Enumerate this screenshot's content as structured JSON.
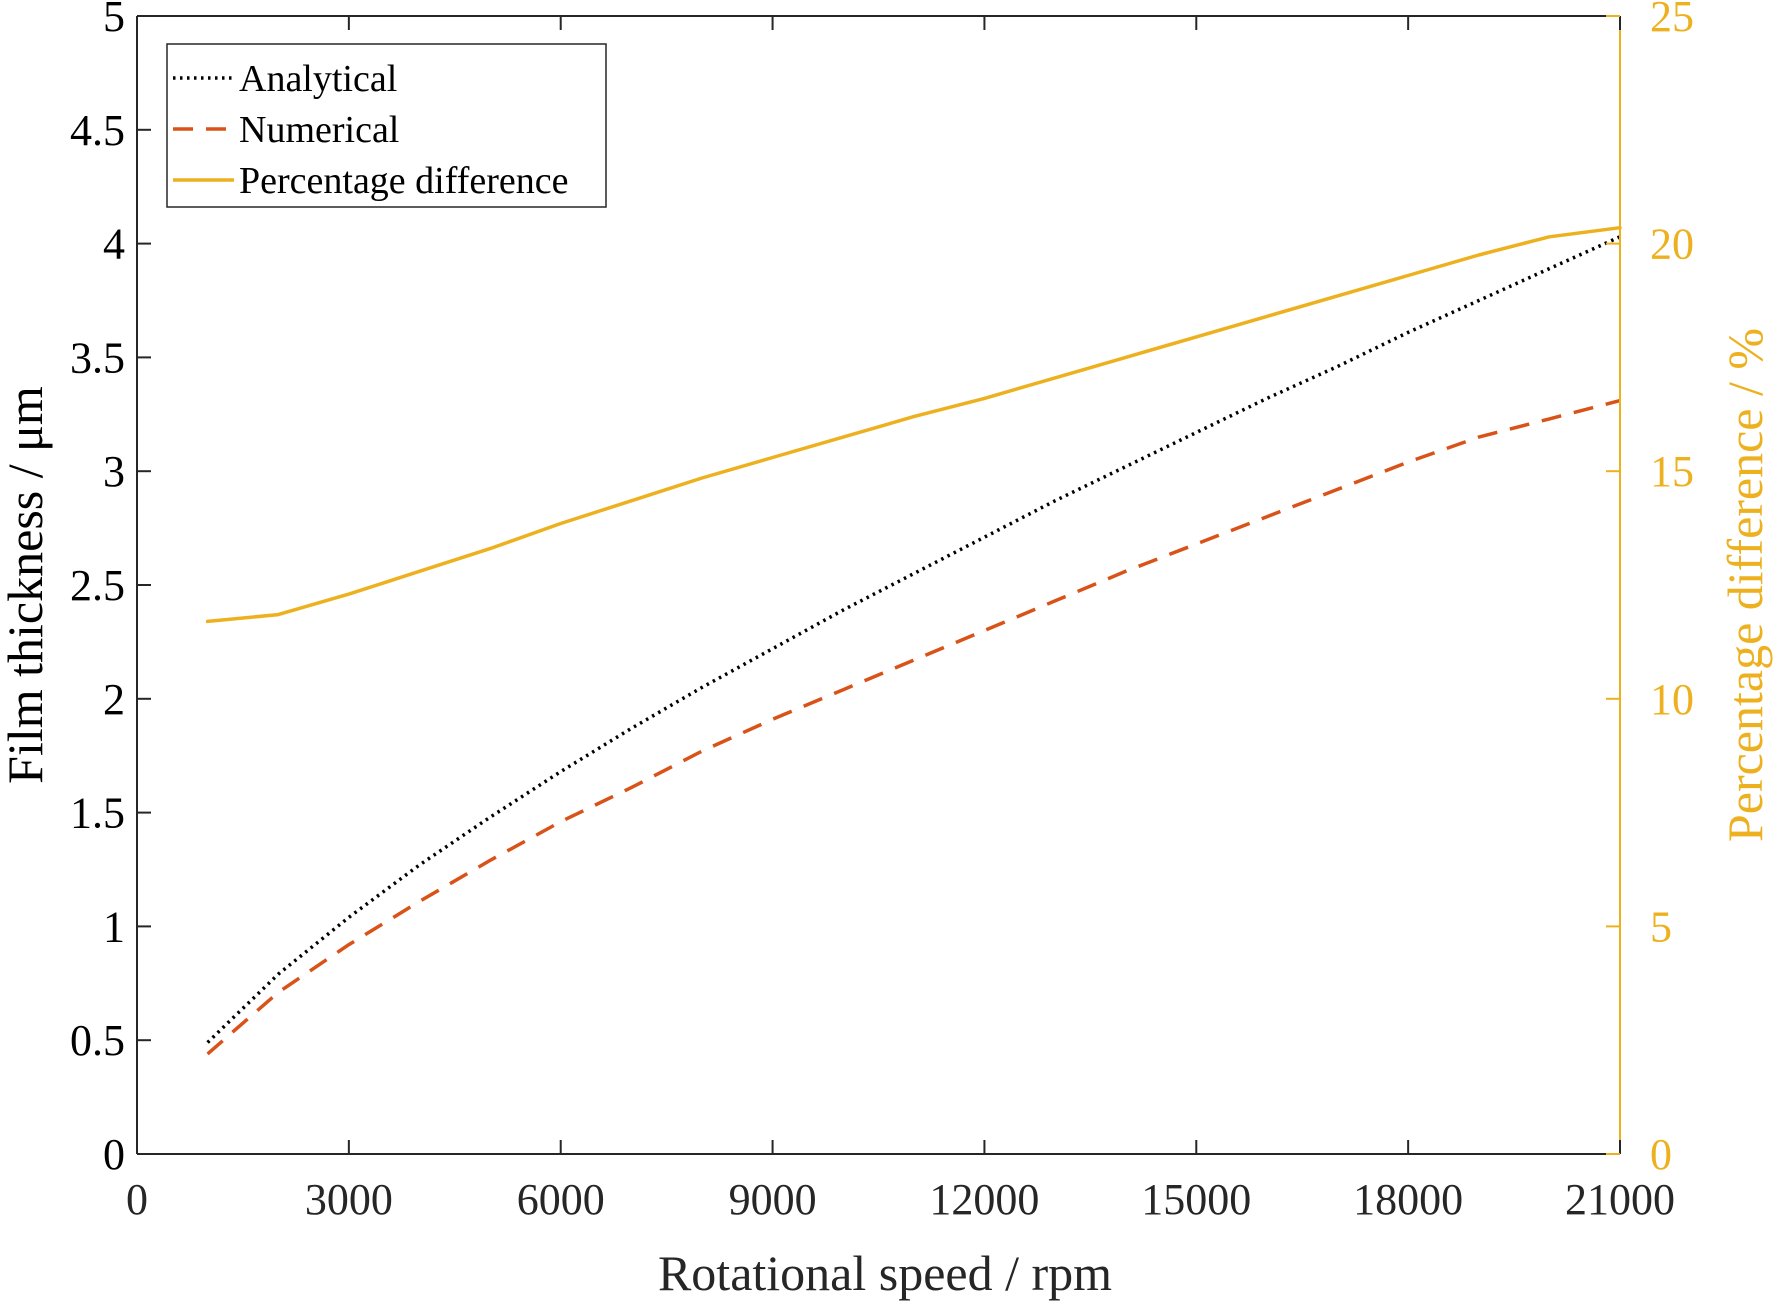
{
  "chart_data": {
    "type": "line",
    "xlabel": "Rotational speed / rpm",
    "ylabel_left": "Film thickness / μm",
    "ylabel_right": "Percentage difference / %",
    "xlim": [
      0,
      21000
    ],
    "ylim_left": [
      0,
      5
    ],
    "ylim_right": [
      0,
      25
    ],
    "x_ticks": [
      0,
      3000,
      6000,
      9000,
      12000,
      15000,
      18000,
      21000
    ],
    "y_left_ticks": [
      0,
      0.5,
      1,
      1.5,
      2,
      2.5,
      3,
      3.5,
      4,
      4.5,
      5
    ],
    "y_right_ticks": [
      0,
      5,
      10,
      15,
      20,
      25
    ],
    "grid": false,
    "legend_position": "top-left",
    "colors": {
      "analytical": "#000000",
      "numerical": "#D95319",
      "percentage": "#EDB120",
      "right_axis": "#EDB120"
    },
    "series": [
      {
        "name": "Analytical",
        "axis": "left",
        "style": "dotted",
        "x": [
          1000,
          2000,
          3000,
          4000,
          5000,
          6000,
          7000,
          8000,
          9000,
          10000,
          11000,
          12000,
          13000,
          14000,
          15000,
          16000,
          17000,
          18000,
          19000,
          20000,
          21000
        ],
        "values": [
          0.49,
          0.79,
          1.04,
          1.27,
          1.48,
          1.68,
          1.87,
          2.05,
          2.22,
          2.39,
          2.55,
          2.71,
          2.87,
          3.02,
          3.17,
          3.32,
          3.46,
          3.61,
          3.75,
          3.89,
          4.03
        ]
      },
      {
        "name": "Numerical",
        "axis": "left",
        "style": "dashed",
        "x": [
          1000,
          2000,
          3000,
          4000,
          5000,
          6000,
          7000,
          8000,
          9000,
          10000,
          11000,
          12000,
          13000,
          14000,
          15000,
          16000,
          17000,
          18000,
          19000,
          20000,
          21000
        ],
        "values": [
          0.44,
          0.71,
          0.92,
          1.11,
          1.29,
          1.46,
          1.61,
          1.77,
          1.91,
          2.04,
          2.17,
          2.3,
          2.43,
          2.56,
          2.68,
          2.8,
          2.92,
          3.04,
          3.15,
          3.23,
          3.31
        ]
      },
      {
        "name": "Percentage difference",
        "axis": "right",
        "style": "solid",
        "x": [
          1000,
          2000,
          3000,
          4000,
          5000,
          6000,
          7000,
          8000,
          9000,
          10000,
          11000,
          12000,
          13000,
          14000,
          15000,
          16000,
          17000,
          18000,
          19000,
          20000,
          21000
        ],
        "values": [
          11.7,
          11.85,
          12.3,
          12.8,
          13.3,
          13.85,
          14.35,
          14.85,
          15.3,
          15.75,
          16.2,
          16.6,
          17.05,
          17.5,
          17.95,
          18.4,
          18.85,
          19.3,
          19.75,
          20.15,
          20.35
        ]
      }
    ]
  }
}
